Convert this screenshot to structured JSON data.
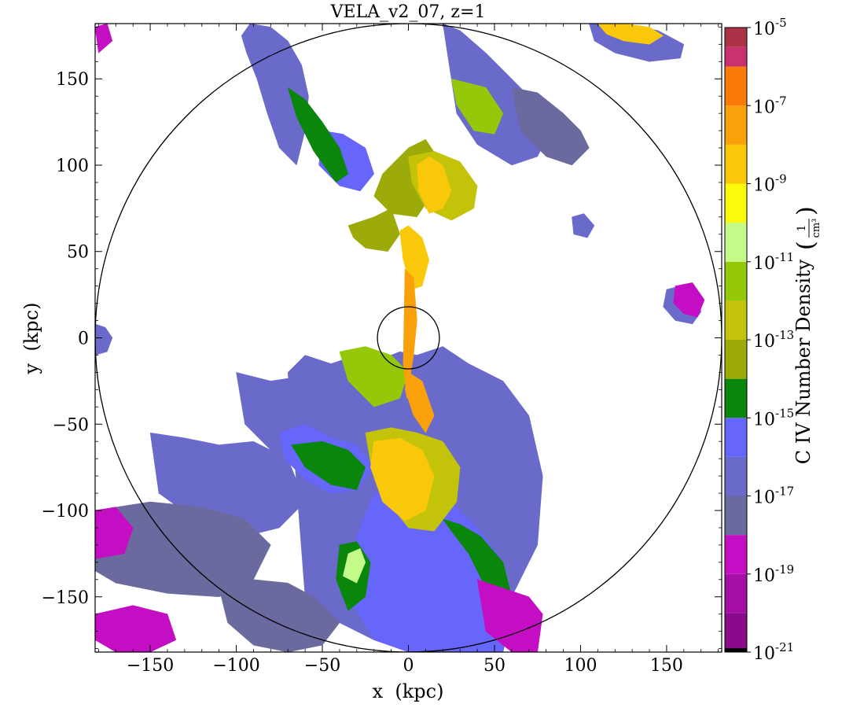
{
  "chart_data": {
    "type": "heatmap",
    "title": "VELA_v2_07, z=1",
    "xlabel": "x  (kpc)",
    "ylabel": "y  (kpc)",
    "xlim": [
      -182,
      182
    ],
    "ylim": [
      -182,
      182
    ],
    "x_ticks": [
      -150,
      -100,
      -50,
      0,
      50,
      100,
      150
    ],
    "y_ticks": [
      150,
      100,
      50,
      0,
      -50,
      -100,
      -150
    ],
    "x_tick_labels": [
      "−150",
      "−100",
      "−50",
      "0",
      "50",
      "100",
      "150"
    ],
    "y_tick_labels": [
      "150",
      "100",
      "50",
      "0",
      "−50",
      "−100",
      "−150"
    ],
    "reference_circles_kpc": [
      182,
      18
    ],
    "colorbar": {
      "label": "C IV Number Density",
      "unit_numerator": "1",
      "unit_denominator": "cm³",
      "scale": "log",
      "range_exponents": [
        -21,
        -5
      ],
      "tick_exponents": [
        -5,
        -7,
        -9,
        -11,
        -13,
        -15,
        -17,
        -19,
        -21
      ],
      "tick_base": "10",
      "levels": [
        {
          "exp": -21.0,
          "color": "#000000"
        },
        {
          "exp": -20.9,
          "color": "#8a0a8a"
        },
        {
          "exp": -20.0,
          "color": "#a60fa6"
        },
        {
          "exp": -19.0,
          "color": "#c40ec4"
        },
        {
          "exp": -18.0,
          "color": "#6a6a9e"
        },
        {
          "exp": -17.0,
          "color": "#6a6acb"
        },
        {
          "exp": -16.0,
          "color": "#6666fa"
        },
        {
          "exp": -15.0,
          "color": "#0a860a"
        },
        {
          "exp": -14.0,
          "color": "#9caa0a"
        },
        {
          "exp": -13.0,
          "color": "#c3c30a"
        },
        {
          "exp": -12.0,
          "color": "#96c80a"
        },
        {
          "exp": -11.0,
          "color": "#c4fa88"
        },
        {
          "exp": -10.0,
          "color": "#fafa0a"
        },
        {
          "exp": -9.0,
          "color": "#fac80a"
        },
        {
          "exp": -8.0,
          "color": "#faa00a"
        },
        {
          "exp": -7.0,
          "color": "#fa7a0a"
        },
        {
          "exp": -6.0,
          "color": "#c8326e"
        },
        {
          "exp": -5.5,
          "color": "#aa3246"
        }
      ]
    },
    "regions": [
      {
        "level": -17,
        "x": [
          -70,
          -60,
          -45,
          -30,
          -15,
          -5,
          5,
          20,
          35,
          55,
          70,
          78,
          75,
          60,
          40,
          20,
          0,
          -20,
          -40,
          -60
        ],
        "y": [
          -20,
          -10,
          -15,
          -10,
          -12,
          -8,
          -10,
          -5,
          -15,
          -25,
          -45,
          -80,
          -120,
          -150,
          -175,
          -180,
          -180,
          -175,
          -165,
          -150
        ]
      },
      {
        "level": -17,
        "x": [
          -150,
          -130,
          -110,
          -90,
          -70,
          -60,
          -75,
          -95,
          -120,
          -145
        ],
        "y": [
          -55,
          -58,
          -62,
          -60,
          -70,
          -95,
          -110,
          -115,
          -108,
          -90
        ]
      },
      {
        "level": -18,
        "x": [
          -182,
          -150,
          -120,
          -95,
          -80,
          -90,
          -110,
          -140,
          -170,
          -182
        ],
        "y": [
          -100,
          -95,
          -98,
          -105,
          -120,
          -140,
          -150,
          -148,
          -142,
          -135
        ]
      },
      {
        "level": -18,
        "x": [
          -110,
          -90,
          -70,
          -55,
          -40,
          -50,
          -70,
          -90,
          -105
        ],
        "y": [
          -145,
          -140,
          -142,
          -150,
          -165,
          -178,
          -182,
          -178,
          -165
        ]
      },
      {
        "level": -17,
        "x": [
          -100,
          -80,
          -60,
          -40,
          -25,
          -35,
          -55,
          -75,
          -95
        ],
        "y": [
          -20,
          -25,
          -22,
          -30,
          -45,
          -65,
          -80,
          -70,
          -50
        ]
      },
      {
        "level": -17,
        "x": [
          -92,
          -80,
          -70,
          -62,
          -58,
          -60,
          -65,
          -75,
          -82,
          -88,
          -94,
          -97
        ],
        "y": [
          182,
          180,
          172,
          158,
          140,
          120,
          100,
          110,
          130,
          150,
          165,
          175
        ]
      },
      {
        "level": -17,
        "x": [
          20,
          30,
          45,
          60,
          75,
          80,
          75,
          60,
          40,
          28
        ],
        "y": [
          182,
          178,
          165,
          150,
          135,
          115,
          105,
          100,
          112,
          130
        ]
      },
      {
        "level": -18,
        "x": [
          60,
          75,
          90,
          100,
          105,
          95,
          80,
          65
        ],
        "y": [
          145,
          142,
          130,
          120,
          110,
          100,
          105,
          120
        ]
      },
      {
        "level": -17,
        "x": [
          150,
          158,
          168,
          170,
          165,
          155,
          148
        ],
        "y": [
          28,
          30,
          24,
          15,
          8,
          10,
          18
        ]
      },
      {
        "level": -17,
        "x": [
          95,
          102,
          108,
          104,
          96
        ],
        "y": [
          70,
          72,
          65,
          58,
          60
        ]
      },
      {
        "level": -17,
        "x": [
          -182,
          -176,
          -172,
          -175,
          -182
        ],
        "y": [
          8,
          6,
          0,
          -8,
          -10
        ]
      },
      {
        "level": -16,
        "x": [
          -20,
          -5,
          10,
          25,
          40,
          55,
          60,
          55,
          40,
          20,
          0,
          -20,
          -35,
          -30
        ],
        "y": [
          -90,
          -85,
          -90,
          -95,
          -110,
          -130,
          -160,
          -182,
          -182,
          -182,
          -182,
          -175,
          -150,
          -115
        ]
      },
      {
        "level": -16,
        "x": [
          -75,
          -60,
          -45,
          -30,
          -20,
          -30,
          -45,
          -60,
          -72
        ],
        "y": [
          -55,
          -50,
          -58,
          -62,
          -75,
          -88,
          -90,
          -82,
          -70
        ]
      },
      {
        "level": -16,
        "x": [
          -50,
          -38,
          -25,
          -20,
          -28,
          -40,
          -52
        ],
        "y": [
          120,
          118,
          110,
          95,
          85,
          88,
          100
        ]
      },
      {
        "level": -15,
        "x": [
          -70,
          -60,
          -50,
          -40,
          -35,
          -42,
          -55,
          -65
        ],
        "y": [
          145,
          138,
          125,
          110,
          95,
          90,
          108,
          128
        ]
      },
      {
        "level": -15,
        "x": [
          -68,
          -50,
          -35,
          -25,
          -30,
          -45,
          -60
        ],
        "y": [
          -62,
          -60,
          -65,
          -75,
          -88,
          -85,
          -75
        ]
      },
      {
        "level": -15,
        "x": [
          20,
          30,
          42,
          55,
          60,
          58,
          45,
          35,
          25
        ],
        "y": [
          -105,
          -108,
          -115,
          -130,
          -150,
          -160,
          -145,
          -125,
          -112
        ]
      },
      {
        "level": -15,
        "x": [
          -40,
          -30,
          -22,
          -25,
          -35,
          -42
        ],
        "y": [
          -120,
          -118,
          -130,
          -150,
          -158,
          -140
        ]
      },
      {
        "level": -14,
        "x": [
          -15,
          0,
          10,
          20,
          15,
          5,
          -10,
          -20
        ],
        "y": [
          95,
          110,
          115,
          100,
          85,
          70,
          72,
          82
        ]
      },
      {
        "level": -14,
        "x": [
          -35,
          -20,
          -10,
          -5,
          -12,
          -25,
          -32
        ],
        "y": [
          65,
          70,
          75,
          60,
          50,
          52,
          58
        ]
      },
      {
        "level": -13,
        "x": [
          -25,
          -10,
          5,
          20,
          30,
          28,
          15,
          0,
          -12,
          -22
        ],
        "y": [
          -55,
          -52,
          -55,
          -60,
          -75,
          -95,
          -112,
          -110,
          -95,
          -72
        ]
      },
      {
        "level": -13,
        "x": [
          0,
          15,
          30,
          40,
          38,
          25,
          10,
          2
        ],
        "y": [
          105,
          108,
          102,
          88,
          75,
          68,
          75,
          90
        ]
      },
      {
        "level": -12,
        "x": [
          -40,
          -25,
          -10,
          0,
          -5,
          -20,
          -35
        ],
        "y": [
          -8,
          -5,
          -10,
          -20,
          -35,
          -40,
          -25
        ]
      },
      {
        "level": -12,
        "x": [
          25,
          45,
          55,
          50,
          38,
          28
        ],
        "y": [
          150,
          145,
          130,
          118,
          120,
          135
        ]
      },
      {
        "level": -11,
        "x": [
          -35,
          -28,
          -25,
          -30,
          -38
        ],
        "y": [
          -125,
          -122,
          -130,
          -142,
          -138
        ]
      },
      {
        "level": -9,
        "x": [
          -20,
          -5,
          8,
          15,
          10,
          -2,
          -15,
          -22
        ],
        "y": [
          -60,
          -58,
          -65,
          -80,
          -100,
          -106,
          -95,
          -75
        ]
      },
      {
        "level": -9,
        "x": [
          5,
          12,
          20,
          25,
          20,
          12,
          6
        ],
        "y": [
          100,
          105,
          100,
          85,
          75,
          72,
          85
        ]
      },
      {
        "level": -9,
        "x": [
          -5,
          0,
          8,
          12,
          8,
          2,
          -3
        ],
        "y": [
          62,
          65,
          58,
          45,
          30,
          28,
          45
        ]
      },
      {
        "level": -8,
        "x": [
          -2,
          3,
          5,
          3,
          -1,
          -3
        ],
        "y": [
          40,
          35,
          10,
          -10,
          -35,
          -15
        ]
      },
      {
        "level": -8,
        "x": [
          0,
          8,
          15,
          10,
          3,
          -2
        ],
        "y": [
          -20,
          -25,
          -45,
          -55,
          -45,
          -30
        ]
      },
      {
        "level": -17,
        "x": [
          105,
          125,
          145,
          160,
          158,
          140,
          120,
          108
        ],
        "y": [
          182,
          182,
          178,
          170,
          162,
          160,
          165,
          172
        ]
      },
      {
        "level": -9,
        "x": [
          110,
          125,
          140,
          148,
          140,
          125,
          115
        ],
        "y": [
          182,
          182,
          180,
          175,
          170,
          172,
          176
        ]
      },
      {
        "level": -19,
        "x": [
          -182,
          -170,
          -160,
          -165,
          -182
        ],
        "y": [
          -100,
          -98,
          -110,
          -125,
          -128
        ]
      },
      {
        "level": -19,
        "x": [
          -182,
          -160,
          -140,
          -135,
          -150,
          -170,
          -182
        ],
        "y": [
          -160,
          -155,
          -160,
          -175,
          -182,
          -182,
          -175
        ]
      },
      {
        "level": -19,
        "x": [
          -182,
          -175,
          -172,
          -180
        ],
        "y": [
          180,
          182,
          172,
          165
        ]
      },
      {
        "level": -19,
        "x": [
          155,
          165,
          172,
          168,
          160,
          154
        ],
        "y": [
          30,
          32,
          22,
          12,
          14,
          20
        ]
      },
      {
        "level": -19,
        "x": [
          40,
          55,
          70,
          78,
          75,
          60,
          45
        ],
        "y": [
          -140,
          -145,
          -150,
          -160,
          -182,
          -182,
          -170
        ]
      }
    ]
  }
}
